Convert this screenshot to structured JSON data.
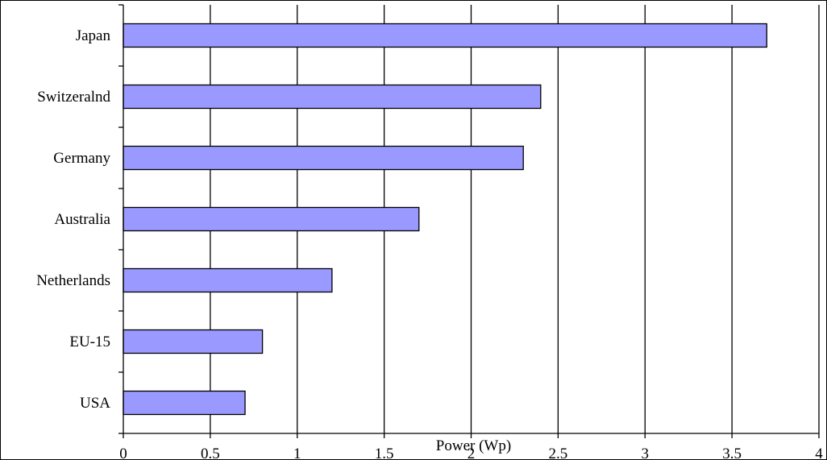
{
  "chart_data": {
    "type": "bar",
    "orientation": "horizontal",
    "title": "",
    "xlabel": "Power (Wp)",
    "ylabel": "",
    "categories": [
      "Japan",
      "Switzeralnd",
      "Germany",
      "Australia",
      "Netherlands",
      "EU-15",
      "USA"
    ],
    "values": [
      3.7,
      2.4,
      2.3,
      1.7,
      1.2,
      0.8,
      0.7
    ],
    "xlim": [
      0,
      4
    ],
    "xticks": [
      "0",
      "0.5",
      "1",
      "1.5",
      "2",
      "2.5",
      "3",
      "3.5",
      "4"
    ],
    "grid": "vertical",
    "legend": "none",
    "colors": {
      "bar_fill": "#9999ff",
      "bar_stroke": "#000000",
      "grid": "#000000"
    }
  }
}
